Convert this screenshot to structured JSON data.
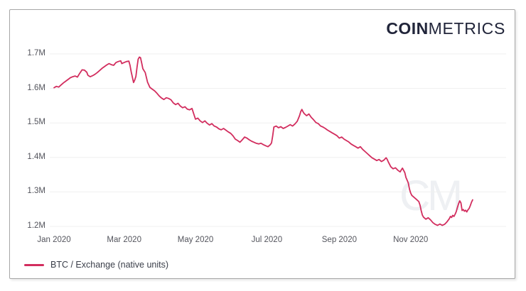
{
  "brand": {
    "logo_bold": "COIN",
    "logo_light": "METRICS"
  },
  "watermark_text": "CM",
  "colors": {
    "line": "#d22d5e",
    "logo": "#21253a",
    "grid": "#efefef",
    "axis_label": "#53545c",
    "legend_text": "#3a3e49",
    "card_border": "#a6a6a6",
    "watermark": "#eef0f3"
  },
  "legend": {
    "label": "BTC / Exchange (native units)"
  },
  "chart_data": {
    "type": "line",
    "title": "",
    "xlabel": "",
    "ylabel": "",
    "unit": "M BTC",
    "x_unit": "days since 2020-01-01",
    "xlim_days": [
      0,
      365
    ],
    "ylim": [
      1.2,
      1.7
    ],
    "grid": "horizontal",
    "legend_position": "bottom-left",
    "x_tick_labels": [
      "Jan 2020",
      "Mar 2020",
      "May 2020",
      "Jul 2020",
      "Sep 2020",
      "Nov 2020"
    ],
    "x_tick_days": [
      0,
      60,
      121,
      182,
      244,
      305
    ],
    "y_tick_labels": [
      "1.7M",
      "1.6M",
      "1.5M",
      "1.4M",
      "1.3M",
      "1.2M"
    ],
    "y_ticks": [
      1.7,
      1.6,
      1.5,
      1.4,
      1.3,
      1.2
    ],
    "series": [
      {
        "name": "BTC / Exchange (native units)",
        "color": "#d22d5e",
        "points": [
          [
            0,
            1.602
          ],
          [
            2,
            1.606
          ],
          [
            4,
            1.604
          ],
          [
            6,
            1.61
          ],
          [
            8,
            1.616
          ],
          [
            10,
            1.621
          ],
          [
            12,
            1.626
          ],
          [
            14,
            1.631
          ],
          [
            16,
            1.634
          ],
          [
            18,
            1.636
          ],
          [
            20,
            1.633
          ],
          [
            22,
            1.644
          ],
          [
            24,
            1.654
          ],
          [
            26,
            1.653
          ],
          [
            28,
            1.647
          ],
          [
            29,
            1.638
          ],
          [
            31,
            1.634
          ],
          [
            33,
            1.637
          ],
          [
            35,
            1.641
          ],
          [
            37,
            1.646
          ],
          [
            39,
            1.652
          ],
          [
            41,
            1.658
          ],
          [
            43,
            1.663
          ],
          [
            45,
            1.668
          ],
          [
            47,
            1.672
          ],
          [
            49,
            1.669
          ],
          [
            51,
            1.667
          ],
          [
            53,
            1.675
          ],
          [
            55,
            1.678
          ],
          [
            57,
            1.68
          ],
          [
            58,
            1.672
          ],
          [
            60,
            1.675
          ],
          [
            62,
            1.678
          ],
          [
            64,
            1.679
          ],
          [
            65,
            1.667
          ],
          [
            66,
            1.648
          ],
          [
            68,
            1.617
          ],
          [
            69,
            1.624
          ],
          [
            70,
            1.635
          ],
          [
            71,
            1.662
          ],
          [
            72,
            1.685
          ],
          [
            73,
            1.691
          ],
          [
            74,
            1.689
          ],
          [
            75,
            1.673
          ],
          [
            76,
            1.657
          ],
          [
            78,
            1.646
          ],
          [
            80,
            1.618
          ],
          [
            82,
            1.603
          ],
          [
            84,
            1.598
          ],
          [
            86,
            1.593
          ],
          [
            88,
            1.586
          ],
          [
            90,
            1.578
          ],
          [
            92,
            1.572
          ],
          [
            94,
            1.568
          ],
          [
            96,
            1.573
          ],
          [
            98,
            1.571
          ],
          [
            100,
            1.567
          ],
          [
            102,
            1.558
          ],
          [
            104,
            1.553
          ],
          [
            106,
            1.557
          ],
          [
            108,
            1.549
          ],
          [
            110,
            1.544
          ],
          [
            112,
            1.547
          ],
          [
            114,
            1.54
          ],
          [
            116,
            1.538
          ],
          [
            118,
            1.542
          ],
          [
            120,
            1.521
          ],
          [
            121,
            1.511
          ],
          [
            123,
            1.514
          ],
          [
            125,
            1.506
          ],
          [
            127,
            1.501
          ],
          [
            129,
            1.506
          ],
          [
            131,
            1.499
          ],
          [
            133,
            1.494
          ],
          [
            135,
            1.498
          ],
          [
            137,
            1.491
          ],
          [
            139,
            1.488
          ],
          [
            141,
            1.483
          ],
          [
            143,
            1.48
          ],
          [
            145,
            1.484
          ],
          [
            147,
            1.479
          ],
          [
            149,
            1.474
          ],
          [
            151,
            1.47
          ],
          [
            153,
            1.463
          ],
          [
            155,
            1.453
          ],
          [
            157,
            1.449
          ],
          [
            159,
            1.444
          ],
          [
            161,
            1.451
          ],
          [
            163,
            1.459
          ],
          [
            165,
            1.456
          ],
          [
            167,
            1.451
          ],
          [
            169,
            1.447
          ],
          [
            171,
            1.444
          ],
          [
            173,
            1.441
          ],
          [
            175,
            1.439
          ],
          [
            177,
            1.441
          ],
          [
            179,
            1.437
          ],
          [
            181,
            1.434
          ],
          [
            183,
            1.431
          ],
          [
            185,
            1.437
          ],
          [
            186,
            1.442
          ],
          [
            187,
            1.462
          ],
          [
            188,
            1.488
          ],
          [
            190,
            1.491
          ],
          [
            192,
            1.486
          ],
          [
            194,
            1.489
          ],
          [
            196,
            1.484
          ],
          [
            198,
            1.487
          ],
          [
            200,
            1.491
          ],
          [
            202,
            1.495
          ],
          [
            204,
            1.491
          ],
          [
            206,
            1.497
          ],
          [
            208,
            1.505
          ],
          [
            210,
            1.521
          ],
          [
            211,
            1.533
          ],
          [
            212,
            1.539
          ],
          [
            213,
            1.532
          ],
          [
            214,
            1.527
          ],
          [
            216,
            1.521
          ],
          [
            218,
            1.526
          ],
          [
            220,
            1.516
          ],
          [
            222,
            1.509
          ],
          [
            224,
            1.501
          ],
          [
            226,
            1.498
          ],
          [
            228,
            1.491
          ],
          [
            230,
            1.488
          ],
          [
            232,
            1.484
          ],
          [
            234,
            1.479
          ],
          [
            236,
            1.475
          ],
          [
            238,
            1.471
          ],
          [
            240,
            1.467
          ],
          [
            242,
            1.463
          ],
          [
            244,
            1.456
          ],
          [
            246,
            1.459
          ],
          [
            248,
            1.453
          ],
          [
            250,
            1.449
          ],
          [
            252,
            1.445
          ],
          [
            254,
            1.439
          ],
          [
            256,
            1.435
          ],
          [
            258,
            1.431
          ],
          [
            260,
            1.427
          ],
          [
            262,
            1.431
          ],
          [
            264,
            1.423
          ],
          [
            266,
            1.417
          ],
          [
            268,
            1.411
          ],
          [
            270,
            1.405
          ],
          [
            272,
            1.399
          ],
          [
            274,
            1.395
          ],
          [
            276,
            1.391
          ],
          [
            278,
            1.394
          ],
          [
            280,
            1.388
          ],
          [
            282,
            1.392
          ],
          [
            284,
            1.399
          ],
          [
            285,
            1.394
          ],
          [
            286,
            1.386
          ],
          [
            288,
            1.373
          ],
          [
            290,
            1.367
          ],
          [
            292,
            1.37
          ],
          [
            294,
            1.363
          ],
          [
            296,
            1.358
          ],
          [
            297,
            1.364
          ],
          [
            298,
            1.369
          ],
          [
            300,
            1.356
          ],
          [
            301,
            1.342
          ],
          [
            302,
            1.334
          ],
          [
            303,
            1.326
          ],
          [
            304,
            1.308
          ],
          [
            305,
            1.297
          ],
          [
            306,
            1.29
          ],
          [
            308,
            1.284
          ],
          [
            310,
            1.278
          ],
          [
            312,
            1.272
          ],
          [
            313,
            1.262
          ],
          [
            314,
            1.246
          ],
          [
            315,
            1.233
          ],
          [
            316,
            1.227
          ],
          [
            318,
            1.221
          ],
          [
            320,
            1.225
          ],
          [
            322,
            1.219
          ],
          [
            324,
            1.211
          ],
          [
            326,
            1.206
          ],
          [
            328,
            1.203
          ],
          [
            330,
            1.207
          ],
          [
            332,
            1.203
          ],
          [
            334,
            1.206
          ],
          [
            336,
            1.213
          ],
          [
            338,
            1.222
          ],
          [
            339,
            1.229
          ],
          [
            340,
            1.226
          ],
          [
            341,
            1.232
          ],
          [
            342,
            1.229
          ],
          [
            343,
            1.235
          ],
          [
            344,
            1.243
          ],
          [
            345,
            1.255
          ],
          [
            346,
            1.266
          ],
          [
            347,
            1.274
          ],
          [
            348,
            1.268
          ],
          [
            349,
            1.246
          ],
          [
            350,
            1.249
          ],
          [
            351,
            1.244
          ],
          [
            352,
            1.247
          ],
          [
            353,
            1.242
          ],
          [
            354,
            1.248
          ],
          [
            355,
            1.252
          ],
          [
            356,
            1.26
          ],
          [
            357,
            1.27
          ],
          [
            358,
            1.277
          ]
        ]
      }
    ]
  }
}
